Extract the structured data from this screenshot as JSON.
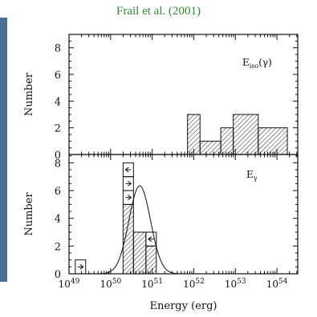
{
  "header": {
    "citation": "Frail et al. (2001)"
  },
  "colors": {
    "citation": "#2e8b2e",
    "side_bar": "#4a6f9a",
    "hatch": "#222222",
    "axes": "#111111"
  },
  "chart_data": [
    {
      "type": "bar",
      "panel": "top",
      "label": "E_iso(γ)",
      "label_main": "E",
      "label_sub": "iso",
      "label_suffix": "(γ)",
      "ylabel": "Number",
      "xlabel": "",
      "x_scale": "log",
      "xlim": [
        49,
        54.5
      ],
      "ylim": [
        0,
        9
      ],
      "y_ticks": [
        0,
        2,
        4,
        6,
        8
      ],
      "bins": [
        {
          "x0": 51.85,
          "x1": 52.15,
          "count": 3
        },
        {
          "x0": 52.15,
          "x1": 52.65,
          "count": 1
        },
        {
          "x0": 52.65,
          "x1": 52.95,
          "count": 2
        },
        {
          "x0": 52.95,
          "x1": 53.55,
          "count": 3
        },
        {
          "x0": 53.55,
          "x1": 54.25,
          "count": 2
        }
      ]
    },
    {
      "type": "bar",
      "panel": "bottom",
      "label": "E_γ",
      "label_main": "E",
      "label_sub": "γ",
      "ylabel": "Number",
      "xlabel": "Energy (erg)",
      "x_scale": "log",
      "xlim": [
        49,
        54.5
      ],
      "ylim": [
        0,
        8.6
      ],
      "y_ticks": [
        0,
        2,
        4,
        6,
        8
      ],
      "x_tick_labels": [
        {
          "exp": 49,
          "base": "10",
          "power": "49"
        },
        {
          "exp": 50,
          "base": "10",
          "power": "50"
        },
        {
          "exp": 51,
          "base": "10",
          "power": "51"
        },
        {
          "exp": 52,
          "base": "10",
          "power": "52"
        },
        {
          "exp": 53,
          "base": "10",
          "power": "53"
        },
        {
          "exp": 54,
          "base": "10",
          "power": "54"
        }
      ],
      "bins": [
        {
          "x0": 50.3,
          "x1": 50.55,
          "count": 5
        },
        {
          "x0": 50.55,
          "x1": 50.85,
          "count": 3
        },
        {
          "x0": 50.85,
          "x1": 51.1,
          "count": 2
        }
      ],
      "limit_boxes": [
        {
          "x0": 49.15,
          "x1": 49.4,
          "y0": 0,
          "y1": 1,
          "direction": "right"
        },
        {
          "x0": 50.3,
          "x1": 50.55,
          "y0": 5,
          "y1": 6,
          "direction": "right"
        },
        {
          "x0": 50.3,
          "x1": 50.55,
          "y0": 6,
          "y1": 7,
          "direction": "right"
        },
        {
          "x0": 50.3,
          "x1": 50.55,
          "y0": 7,
          "y1": 8,
          "direction": "left"
        },
        {
          "x0": 50.85,
          "x1": 51.1,
          "y0": 2,
          "y1": 3,
          "direction": "left"
        }
      ],
      "gaussian_fit": {
        "peak": 6.35,
        "center": 50.7,
        "sigma": 0.26
      }
    }
  ]
}
